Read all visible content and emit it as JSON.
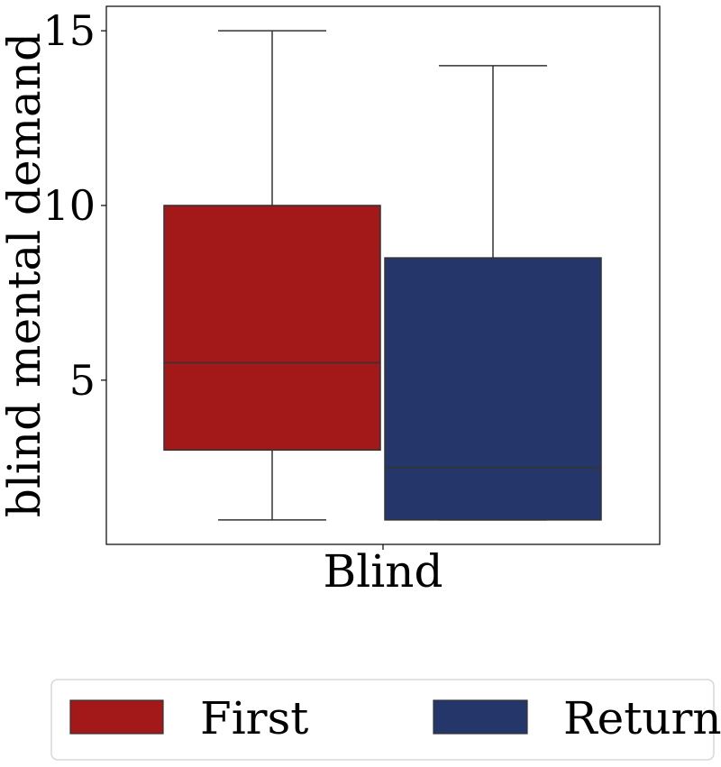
{
  "chart_data": {
    "type": "box",
    "xlabel": "Blind",
    "ylabel": "blind mental demand",
    "categories": [
      "Blind"
    ],
    "ylim": [
      0.3,
      15.7
    ],
    "yticks": [
      5,
      10,
      15
    ],
    "ytick_labels": [
      "5",
      "10",
      "15"
    ],
    "grid": false,
    "legend_position": "bottom",
    "series": [
      {
        "name": "First",
        "color": "#a31818",
        "whisker_low": 1,
        "q1": 3,
        "median": 5.5,
        "q3": 10,
        "whisker_high": 15
      },
      {
        "name": "Return",
        "color": "#25366b",
        "whisker_low": 1,
        "q1": 1,
        "median": 2.5,
        "q3": 8.5,
        "whisker_high": 14
      }
    ]
  }
}
